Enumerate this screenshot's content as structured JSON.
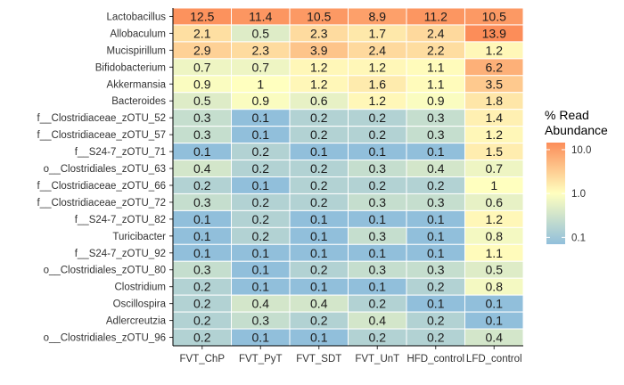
{
  "chart_data": {
    "type": "heatmap",
    "x_categories": [
      "FVT_ChP",
      "FVT_PyT",
      "FVT_SDT",
      "FVT_UnT",
      "HFD_control",
      "LFD_control"
    ],
    "y_categories": [
      "Lactobacillus",
      "Allobaculum",
      "Mucispirillum",
      "Bifidobacterium",
      "Akkermansia",
      "Bacteroides",
      "f__Clostridiaceae_zOTU_52",
      "f__Clostridiaceae_zOTU_57",
      "f__S24-7_zOTU_71",
      "o__Clostridiales_zOTU_63",
      "f__Clostridiaceae_zOTU_66",
      "f__Clostridiaceae_zOTU_72",
      "f__S24-7_zOTU_82",
      "Turicibacter",
      "f__S24-7_zOTU_92",
      "o__Clostridiales_zOTU_80",
      "Clostridium",
      "Oscillospira",
      "Adlercreutzia",
      "o__Clostridiales_zOTU_96"
    ],
    "values": [
      [
        12.5,
        11.4,
        10.5,
        8.9,
        11.2,
        10.5
      ],
      [
        2.1,
        0.5,
        2.3,
        1.7,
        2.4,
        13.9
      ],
      [
        2.9,
        2.3,
        3.9,
        2.4,
        2.2,
        1.2
      ],
      [
        0.7,
        0.7,
        1.2,
        1.2,
        1.1,
        6.2
      ],
      [
        0.9,
        1,
        1.2,
        1.6,
        1.1,
        3.5
      ],
      [
        0.5,
        0.9,
        0.6,
        1.2,
        0.9,
        1.8
      ],
      [
        0.3,
        0.1,
        0.2,
        0.2,
        0.3,
        1.4
      ],
      [
        0.3,
        0.1,
        0.2,
        0.2,
        0.3,
        1.2
      ],
      [
        0.1,
        0.2,
        0.1,
        0.1,
        0.1,
        1.5
      ],
      [
        0.4,
        0.2,
        0.2,
        0.3,
        0.4,
        0.7
      ],
      [
        0.2,
        0.1,
        0.2,
        0.2,
        0.2,
        1
      ],
      [
        0.3,
        0.2,
        0.2,
        0.3,
        0.3,
        0.6
      ],
      [
        0.1,
        0.2,
        0.1,
        0.1,
        0.1,
        1.2
      ],
      [
        0.1,
        0.2,
        0.1,
        0.3,
        0.1,
        0.8
      ],
      [
        0.1,
        0.1,
        0.1,
        0.1,
        0.1,
        1.1
      ],
      [
        0.3,
        0.1,
        0.2,
        0.3,
        0.3,
        0.5
      ],
      [
        0.2,
        0.1,
        0.1,
        0.1,
        0.2,
        0.8
      ],
      [
        0.2,
        0.4,
        0.4,
        0.2,
        0.1,
        0.1
      ],
      [
        0.2,
        0.3,
        0.2,
        0.4,
        0.2,
        0.1
      ],
      [
        0.2,
        0.1,
        0.1,
        0.2,
        0.2,
        0.4
      ]
    ],
    "color_scale": "log",
    "colors": {
      "low": "#91bfdb",
      "mid": "#ffffbf",
      "high": "#fc8d59"
    },
    "legend": {
      "title_lines": [
        "% Read",
        "Abundance"
      ],
      "breaks": [
        10.0,
        1.0,
        0.1
      ],
      "break_labels": [
        "10.0",
        "1.0",
        "0.1"
      ],
      "position": "right"
    },
    "grid": false
  }
}
